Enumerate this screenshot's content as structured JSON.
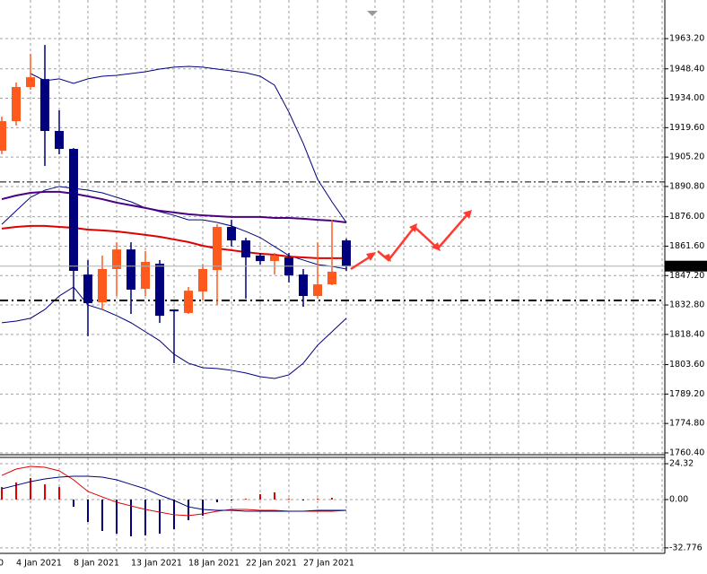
{
  "chart_data": [
    {
      "type": "candlestick",
      "categories": [
        "0",
        "4 Jan 2021",
        null,
        null,
        null,
        "8 Jan 2021",
        null,
        null,
        null,
        "13 Jan 2021",
        null,
        null,
        null,
        "18 Jan 2021",
        null,
        null,
        null,
        "22 Jan 2021",
        null,
        null,
        null,
        "27 Jan 2021",
        null,
        null,
        null
      ],
      "open": [
        1908.3,
        1922.8,
        1939.5,
        1943.4,
        1918.0,
        1909.2,
        1847.7,
        1834.1,
        1850.4,
        1860.0,
        1840.7,
        1853.0,
        1830.6,
        1828.9,
        1839.4,
        1849.9,
        1871.0,
        1864.4,
        1857.0,
        1854.3,
        1856.1,
        1847.7,
        1837.2,
        1842.9,
        1864.4
      ],
      "high": [
        1925.0,
        1941.7,
        1955.7,
        1960.1,
        1928.1,
        1909.6,
        1854.8,
        1857.0,
        1863.5,
        1863.5,
        1859.2,
        1854.8,
        1830.6,
        1841.6,
        1852.6,
        1872.3,
        1874.5,
        1865.7,
        1858.3,
        1858.3,
        1858.3,
        1850.4,
        1863.5,
        1874.5,
        1865.3
      ],
      "low": [
        1906.6,
        1920.6,
        1938.2,
        1900.9,
        1906.6,
        1835.0,
        1817.5,
        1830.6,
        1837.2,
        1828.4,
        1837.2,
        1824.0,
        1804.3,
        1828.4,
        1835.0,
        1832.8,
        1861.4,
        1835.9,
        1852.6,
        1847.7,
        1843.8,
        1831.9,
        1835.9,
        1842.5,
        1849.5
      ],
      "close": [
        1922.8,
        1939.5,
        1944.3,
        1918.0,
        1909.2,
        1849.5,
        1833.7,
        1850.4,
        1860.0,
        1840.3,
        1853.9,
        1827.5,
        1829.7,
        1839.8,
        1850.4,
        1871.0,
        1864.4,
        1856.1,
        1854.3,
        1857.0,
        1847.3,
        1837.2,
        1842.9,
        1849.1,
        1851.8
      ],
      "up_color": "#ff5a1e",
      "down_color": "#00007f",
      "series": [
        {
          "color": "#00007f",
          "width": 1,
          "values": [
            null,
            null,
            1946.1,
            1942.6,
            1943.5,
            1941.3,
            1943.5,
            1944.8,
            1945.2,
            1946.1,
            1947.0,
            1948.3,
            1949.2,
            1949.6,
            1949.2,
            1948.3,
            1947.4,
            1946.5,
            1944.8,
            1940.4,
            1927.2,
            1911.9,
            1894.3,
            1883.3,
            1873.2
          ]
        },
        {
          "color": "#00007f",
          "width": 1,
          "values": [
            1824.1,
            1824.9,
            1826.3,
            1830.6,
            1837.2,
            1841.6,
            1832.8,
            1830.6,
            1827.6,
            1824.1,
            1819.7,
            1815.3,
            1808.7,
            1804.3,
            1802.1,
            1801.7,
            1800.8,
            1799.5,
            1797.7,
            1796.8,
            1798.6,
            1804.3,
            1813.1,
            1819.7,
            1826.3
          ]
        },
        {
          "color": "#00007f",
          "width": 1,
          "values": [
            1872.3,
            1878.9,
            1885.5,
            1889.0,
            1890.8,
            1889.9,
            1889.0,
            1887.7,
            1885.5,
            1883.3,
            1880.3,
            1878.5,
            1876.7,
            1874.5,
            1874.5,
            1873.2,
            1871.5,
            1868.8,
            1865.8,
            1861.4,
            1857.0,
            1854.8,
            1852.6,
            1851.7,
            1850.4
          ]
        },
        {
          "color": "#e00000",
          "width": 2,
          "values": [
            1870.2,
            1871.0,
            1871.5,
            1871.5,
            1871.0,
            1870.6,
            1869.7,
            1869.3,
            1868.8,
            1868.0,
            1867.1,
            1866.2,
            1864.9,
            1863.6,
            1861.8,
            1860.5,
            1859.6,
            1858.7,
            1857.9,
            1857.4,
            1856.5,
            1856.1,
            1855.7,
            1855.7,
            1855.7
          ]
        },
        {
          "color": "#4b0082",
          "width": 2,
          "values": [
            1884.6,
            1886.4,
            1887.7,
            1888.2,
            1888.2,
            1887.3,
            1886.0,
            1884.6,
            1882.9,
            1881.6,
            1880.3,
            1878.9,
            1878.1,
            1877.2,
            1876.7,
            1876.3,
            1875.9,
            1875.9,
            1875.9,
            1875.4,
            1875.4,
            1875.0,
            1874.5,
            1874.1,
            1873.2
          ]
        }
      ],
      "hlines": [
        {
          "value": 1893.0,
          "style": "dashdot"
        },
        {
          "value": 1835.0,
          "style": "dashdot-bold"
        }
      ],
      "last_price": 1851.83,
      "ylim": [
        1759.5,
        1982.1
      ],
      "yticks": [
        {
          "value": 1963.2,
          "label": "1963.20"
        },
        {
          "value": 1948.4,
          "label": "1948.40"
        },
        {
          "value": 1934.0,
          "label": "1934.00"
        },
        {
          "value": 1919.6,
          "label": "1919.60"
        },
        {
          "value": 1905.2,
          "label": "1905.20"
        },
        {
          "value": 1890.8,
          "label": "1890.80"
        },
        {
          "value": 1876.0,
          "label": "1876.00"
        },
        {
          "value": 1861.6,
          "label": "1861.60"
        },
        {
          "value": 1847.2,
          "label": "1847.20"
        },
        {
          "value": 1832.8,
          "label": "1832.80"
        },
        {
          "value": 1818.4,
          "label": "1818.40"
        },
        {
          "value": 1803.6,
          "label": "1803.60"
        },
        {
          "value": 1789.2,
          "label": "1789.20"
        },
        {
          "value": 1774.8,
          "label": "1774.80"
        },
        {
          "value": 1760.4,
          "label": "1760.40"
        }
      ],
      "grid": true
    },
    {
      "type": "oscillator",
      "values": [
        8.5,
        11.6,
        14.6,
        10.3,
        8.5,
        -4.9,
        -15.2,
        -21.3,
        -23.1,
        -24.9,
        -24.3,
        -23.1,
        -20.1,
        -14.0,
        -10.9,
        -1.8,
        -0.6,
        0.6,
        3.6,
        4.9,
        0.6,
        -0.6,
        0.6,
        1.2,
        0
      ],
      "positive_color": "#e00000",
      "negative_color": "#00007f",
      "series": [
        {
          "color": "#e00000",
          "width": 1,
          "values": [
            16.4,
            20.7,
            22.5,
            21.9,
            19.5,
            13.4,
            5.5,
            1.8,
            -1.8,
            -4.3,
            -6.7,
            -8.5,
            -10.3,
            -10.9,
            -9.7,
            -7.9,
            -6.7,
            -6.7,
            -7.3,
            -7.3,
            -7.9,
            -7.9,
            -7.9,
            -7.9,
            -7.3
          ]
        },
        {
          "color": "#00007f",
          "width": 1,
          "values": [
            7.3,
            9.7,
            12.2,
            14.0,
            15.2,
            15.8,
            15.8,
            15.2,
            13.4,
            10.3,
            7.3,
            3.0,
            -0.6,
            -4.9,
            -6.7,
            -7.3,
            -7.3,
            -7.9,
            -7.9,
            -7.9,
            -7.9,
            -7.9,
            -7.3,
            -7.3,
            -7.3
          ]
        }
      ],
      "ylim": [
        -36.5,
        28.6
      ],
      "yticks": [
        24.32,
        {
          "value": 0,
          "label": "0.00"
        },
        -32.776
      ],
      "grid": true
    }
  ]
}
